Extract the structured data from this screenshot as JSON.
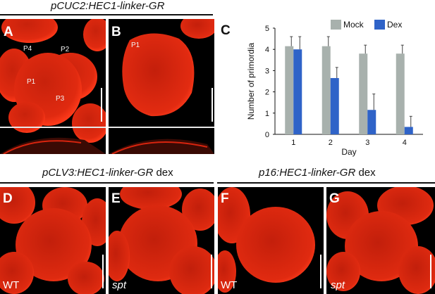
{
  "titles": {
    "top": "pCUC2:HEC1-linker-GR",
    "bottom_left": "pCLV3:HEC1-linker-GR",
    "bottom_left_suffix": "dex",
    "bottom_right": "p16:HEC1-linker-GR",
    "bottom_right_suffix": "dex"
  },
  "panels": {
    "A": {
      "letter": "A",
      "labels": {
        "p4": "P4",
        "p2": "P2",
        "p1": "P1",
        "p3": "P3"
      }
    },
    "B": {
      "letter": "B",
      "labels": {
        "p1": "P1"
      }
    },
    "C": {
      "letter": "C"
    },
    "D": {
      "letter": "D",
      "corner": "WT"
    },
    "E": {
      "letter": "E",
      "corner": "spt"
    },
    "F": {
      "letter": "F",
      "corner": "WT"
    },
    "G": {
      "letter": "G",
      "corner": "spt"
    }
  },
  "colors": {
    "mock": "#a8b1ad",
    "dex": "#2f63c8",
    "tissue": "#d8240e",
    "background": "#000000"
  },
  "chart_data": {
    "type": "bar",
    "categories": [
      "1",
      "2",
      "3",
      "4"
    ],
    "series": [
      {
        "name": "Mock",
        "values": [
          4.15,
          4.15,
          3.8,
          3.8
        ],
        "errors": [
          0.45,
          0.45,
          0.4,
          0.4
        ]
      },
      {
        "name": "Dex",
        "values": [
          4.0,
          2.65,
          1.15,
          0.35
        ],
        "errors": [
          0.6,
          0.5,
          0.75,
          0.5
        ]
      }
    ],
    "xlabel": "Day",
    "ylabel": "Number of  primordia",
    "ylim": [
      0,
      5
    ],
    "yticks": [
      "0",
      "1",
      "2",
      "3",
      "4",
      "5"
    ],
    "grid": false,
    "legend": "top"
  }
}
